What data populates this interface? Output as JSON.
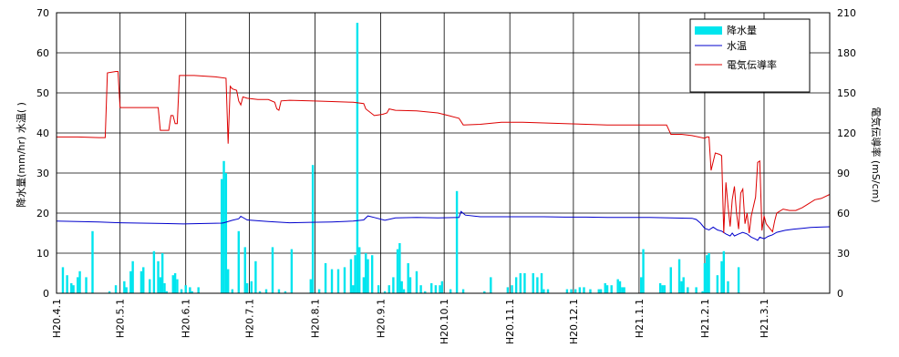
{
  "chart_data": {
    "type": "bar+line",
    "title": "",
    "ylabel_left": "降水量(mm/hr)  水温(  )",
    "ylabel_right": "電気伝導率 (mS/cm)",
    "yleft_ticks": [
      "0",
      "10",
      "20",
      "30",
      "40",
      "50",
      "60",
      "70"
    ],
    "yleft_range": [
      0,
      70
    ],
    "yright_ticks": [
      "0",
      "30",
      "60",
      "90",
      "120",
      "150",
      "180",
      "210"
    ],
    "yright_range": [
      0,
      210
    ],
    "x_ticks": [
      "H20.4.1",
      "H20.5.1",
      "H20.6.1",
      "H20.7.1",
      "H20.8.1",
      "H20.9.1",
      "H20.10.1",
      "H20.11.1",
      "H20.12.1",
      "H21.1.1",
      "H21.2.1",
      "H21.3.1"
    ],
    "x_range_days": [
      0,
      365
    ],
    "grid": true,
    "legend_position": "top-right",
    "series": [
      {
        "name": "降水量",
        "kind": "bar",
        "axis": "left",
        "color": "#00e5ee",
        "points": [
          [
            3,
            6.5
          ],
          [
            5,
            4.5
          ],
          [
            7,
            2.5
          ],
          [
            8,
            2
          ],
          [
            10,
            4
          ],
          [
            11,
            5.5
          ],
          [
            14,
            4
          ],
          [
            17,
            15.5
          ],
          [
            25,
            0.5
          ],
          [
            28,
            2
          ],
          [
            32,
            3
          ],
          [
            33,
            1.5
          ],
          [
            35,
            5.5
          ],
          [
            36,
            8
          ],
          [
            40,
            5.5
          ],
          [
            41,
            6.5
          ],
          [
            44,
            3.5
          ],
          [
            46,
            10.5
          ],
          [
            48,
            8
          ],
          [
            49,
            4
          ],
          [
            50,
            10
          ],
          [
            51,
            2.5
          ],
          [
            52,
            0.5
          ],
          [
            55,
            4.5
          ],
          [
            56,
            5
          ],
          [
            57,
            3.5
          ],
          [
            59,
            1
          ],
          [
            61,
            2
          ],
          [
            63,
            1.5
          ],
          [
            64,
            0.5
          ],
          [
            67,
            1.5
          ],
          [
            78,
            28.5
          ],
          [
            79,
            33
          ],
          [
            80,
            30
          ],
          [
            81,
            6
          ],
          [
            83,
            1
          ],
          [
            86,
            15.5
          ],
          [
            89,
            11.5
          ],
          [
            90,
            2.5
          ],
          [
            92,
            3
          ],
          [
            94,
            8
          ],
          [
            96,
            0.5
          ],
          [
            99,
            1
          ],
          [
            102,
            11.5
          ],
          [
            105,
            1
          ],
          [
            108,
            0.5
          ],
          [
            111,
            11
          ],
          [
            120,
            3.5
          ],
          [
            121,
            32
          ],
          [
            124,
            1
          ],
          [
            127,
            7.5
          ],
          [
            130,
            6
          ],
          [
            133,
            6
          ],
          [
            136,
            6.5
          ],
          [
            139,
            8.5
          ],
          [
            140,
            2
          ],
          [
            141,
            9.5
          ],
          [
            142,
            67.5
          ],
          [
            143,
            11.5
          ],
          [
            145,
            4
          ],
          [
            146,
            10
          ],
          [
            147,
            8.5
          ],
          [
            149,
            9.5
          ],
          [
            152,
            2
          ],
          [
            155,
            0.5
          ],
          [
            157,
            2
          ],
          [
            159,
            4
          ],
          [
            161,
            11
          ],
          [
            162,
            12.5
          ],
          [
            163,
            3
          ],
          [
            164,
            1
          ],
          [
            166,
            7.5
          ],
          [
            167,
            4
          ],
          [
            170,
            5.5
          ],
          [
            172,
            2
          ],
          [
            174,
            0.5
          ],
          [
            177,
            2.5
          ],
          [
            179,
            2
          ],
          [
            181,
            2
          ],
          [
            182,
            3
          ],
          [
            186,
            1
          ],
          [
            189,
            25.5
          ],
          [
            192,
            1
          ],
          [
            202,
            0.5
          ],
          [
            205,
            4
          ],
          [
            213,
            1.5
          ],
          [
            215,
            2
          ],
          [
            217,
            4
          ],
          [
            219,
            5
          ],
          [
            221,
            5
          ],
          [
            225,
            5
          ],
          [
            227,
            4
          ],
          [
            229,
            5
          ],
          [
            230,
            1
          ],
          [
            232,
            1
          ],
          [
            241,
            1
          ],
          [
            243,
            1
          ],
          [
            245,
            1
          ],
          [
            247,
            1.5
          ],
          [
            249,
            1.5
          ],
          [
            252,
            1
          ],
          [
            256,
            1
          ],
          [
            257,
            1
          ],
          [
            259,
            2.5
          ],
          [
            260,
            2
          ],
          [
            262,
            2
          ],
          [
            265,
            3.5
          ],
          [
            266,
            3
          ],
          [
            267,
            1.5
          ],
          [
            268,
            1.5
          ],
          [
            276,
            4
          ],
          [
            277,
            11
          ],
          [
            285,
            2.5
          ],
          [
            286,
            2
          ],
          [
            287,
            2
          ],
          [
            290,
            6.5
          ],
          [
            294,
            8.5
          ],
          [
            295,
            3
          ],
          [
            296,
            4
          ],
          [
            298,
            1.5
          ],
          [
            302,
            1.5
          ],
          [
            305,
            0.5
          ],
          [
            306,
            7.5
          ],
          [
            307,
            9.5
          ],
          [
            308,
            10
          ],
          [
            312,
            4.5
          ],
          [
            314,
            8
          ],
          [
            315,
            10.5
          ],
          [
            317,
            3
          ],
          [
            322,
            6.5
          ]
        ]
      },
      {
        "name": "水温",
        "kind": "line",
        "axis": "left",
        "color": "#0000cc",
        "points": [
          [
            0,
            18
          ],
          [
            10,
            17.9
          ],
          [
            20,
            17.8
          ],
          [
            30,
            17.6
          ],
          [
            40,
            17.5
          ],
          [
            50,
            17.4
          ],
          [
            60,
            17.3
          ],
          [
            70,
            17.4
          ],
          [
            78,
            17.5
          ],
          [
            79,
            17.6
          ],
          [
            83,
            18.2
          ],
          [
            86,
            18.6
          ],
          [
            87,
            19.2
          ],
          [
            90,
            18.3
          ],
          [
            100,
            17.9
          ],
          [
            110,
            17.6
          ],
          [
            120,
            17.7
          ],
          [
            130,
            17.8
          ],
          [
            140,
            18
          ],
          [
            145,
            18.3
          ],
          [
            147,
            19.3
          ],
          [
            150,
            18.9
          ],
          [
            155,
            18.2
          ],
          [
            160,
            18.8
          ],
          [
            170,
            18.9
          ],
          [
            180,
            18.8
          ],
          [
            190,
            18.9
          ],
          [
            191,
            20.4
          ],
          [
            193,
            19.5
          ],
          [
            200,
            19.1
          ],
          [
            210,
            19.1
          ],
          [
            220,
            19.1
          ],
          [
            230,
            19.1
          ],
          [
            240,
            19.0
          ],
          [
            250,
            19.0
          ],
          [
            260,
            18.9
          ],
          [
            270,
            18.9
          ],
          [
            280,
            18.9
          ],
          [
            290,
            18.8
          ],
          [
            300,
            18.7
          ],
          [
            302,
            18.4
          ],
          [
            304,
            17.5
          ],
          [
            306,
            16.2
          ],
          [
            308,
            15.8
          ],
          [
            310,
            16.5
          ],
          [
            312,
            15.8
          ],
          [
            314,
            15.5
          ],
          [
            316,
            14.8
          ],
          [
            318,
            14.3
          ],
          [
            319,
            15
          ],
          [
            320,
            14.3
          ],
          [
            322,
            14.8
          ],
          [
            324,
            15.2
          ],
          [
            326,
            14.8
          ],
          [
            328,
            14.0
          ],
          [
            330,
            13.5
          ],
          [
            331,
            13.2
          ],
          [
            332,
            14
          ],
          [
            334,
            13.6
          ],
          [
            336,
            14.2
          ],
          [
            338,
            14.6
          ],
          [
            340,
            15.2
          ],
          [
            344,
            15.7
          ],
          [
            348,
            16.0
          ],
          [
            352,
            16.2
          ],
          [
            356,
            16.4
          ],
          [
            360,
            16.5
          ],
          [
            365,
            16.6
          ]
        ]
      },
      {
        "name": "電気伝導率",
        "kind": "line",
        "axis": "right",
        "color": "#dd0000",
        "points": [
          [
            0,
            117
          ],
          [
            10,
            117
          ],
          [
            20,
            116.5
          ],
          [
            23,
            116.5
          ],
          [
            24,
            165
          ],
          [
            28,
            166
          ],
          [
            29,
            166
          ],
          [
            30,
            139
          ],
          [
            40,
            139
          ],
          [
            48,
            139
          ],
          [
            49,
            122
          ],
          [
            53,
            122
          ],
          [
            54,
            133
          ],
          [
            55,
            133
          ],
          [
            56,
            127
          ],
          [
            57,
            127
          ],
          [
            58,
            163
          ],
          [
            65,
            163
          ],
          [
            75,
            162
          ],
          [
            80,
            161
          ],
          [
            81,
            112
          ],
          [
            82,
            155
          ],
          [
            83,
            153
          ],
          [
            85,
            152
          ],
          [
            86,
            144
          ],
          [
            87,
            141
          ],
          [
            88,
            147
          ],
          [
            90,
            146
          ],
          [
            95,
            145
          ],
          [
            100,
            145
          ],
          [
            103,
            143
          ],
          [
            104,
            138
          ],
          [
            105,
            137
          ],
          [
            106,
            144
          ],
          [
            110,
            144.5
          ],
          [
            120,
            144
          ],
          [
            130,
            143.5
          ],
          [
            140,
            143
          ],
          [
            145,
            142
          ],
          [
            146,
            138
          ],
          [
            150,
            133
          ],
          [
            154,
            134
          ],
          [
            156,
            135
          ],
          [
            157,
            138
          ],
          [
            160,
            137
          ],
          [
            170,
            136.5
          ],
          [
            180,
            135
          ],
          [
            185,
            133
          ],
          [
            190,
            131
          ],
          [
            192,
            126
          ],
          [
            200,
            126.5
          ],
          [
            210,
            128
          ],
          [
            220,
            128
          ],
          [
            230,
            127.5
          ],
          [
            240,
            127
          ],
          [
            250,
            126.5
          ],
          [
            260,
            126
          ],
          [
            288,
            126
          ],
          [
            290,
            119
          ],
          [
            295,
            119
          ],
          [
            300,
            118
          ],
          [
            306,
            116
          ],
          [
            307,
            117
          ],
          [
            308,
            117
          ],
          [
            309,
            92
          ],
          [
            311,
            105
          ],
          [
            313,
            104
          ],
          [
            314,
            103
          ],
          [
            315,
            45
          ],
          [
            316,
            83
          ],
          [
            317,
            65
          ],
          [
            318,
            50
          ],
          [
            319,
            70
          ],
          [
            320,
            80
          ],
          [
            321,
            60
          ],
          [
            322,
            48
          ],
          [
            323,
            75
          ],
          [
            324,
            78
          ],
          [
            325,
            52
          ],
          [
            326,
            60
          ],
          [
            327,
            45
          ],
          [
            328,
            58
          ],
          [
            330,
            72
          ],
          [
            331,
            98
          ],
          [
            332,
            99
          ],
          [
            333,
            47
          ],
          [
            334,
            58
          ],
          [
            335,
            52
          ],
          [
            336,
            50
          ],
          [
            338,
            46
          ],
          [
            339,
            54
          ],
          [
            340,
            60
          ],
          [
            343,
            63
          ],
          [
            346,
            62
          ],
          [
            349,
            62
          ],
          [
            352,
            64
          ],
          [
            355,
            67
          ],
          [
            358,
            70
          ],
          [
            361,
            71
          ],
          [
            365,
            74
          ]
        ]
      }
    ]
  },
  "legend": {
    "items": [
      {
        "label": "降水量"
      },
      {
        "label": "水温"
      },
      {
        "label": "電気伝導率"
      }
    ]
  }
}
